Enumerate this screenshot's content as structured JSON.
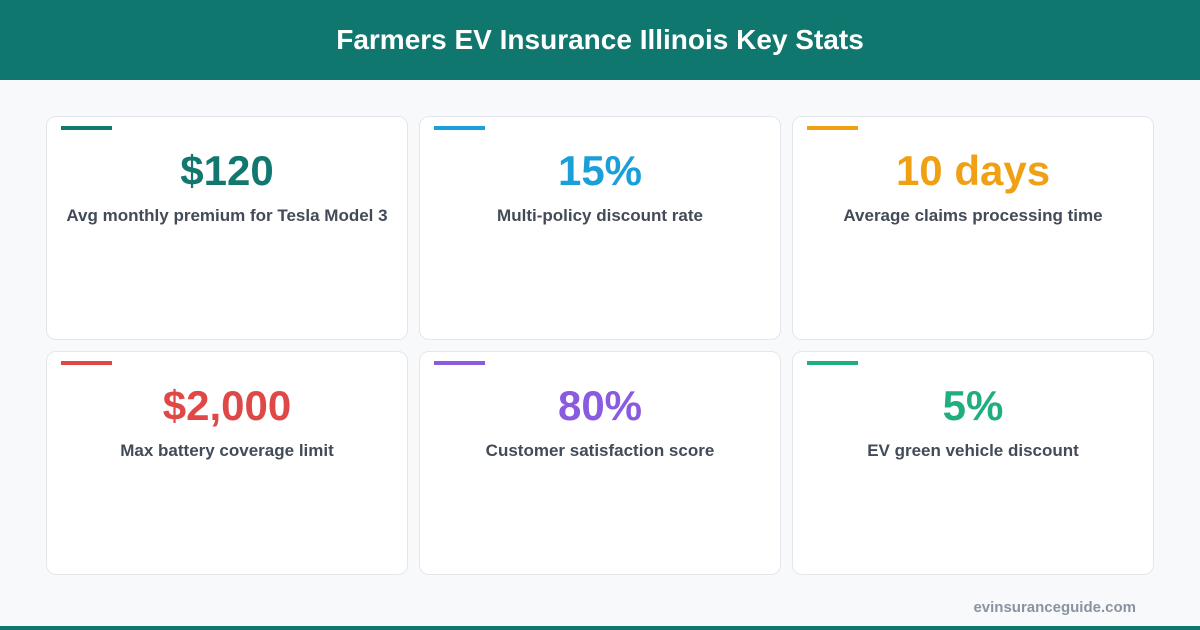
{
  "header": {
    "title": "Farmers EV Insurance Illinois Key Stats"
  },
  "cards": [
    {
      "value": "$120",
      "label": "Avg monthly premium for Tesla Model 3",
      "color": "#12776e"
    },
    {
      "value": "15%",
      "label": "Multi-policy discount rate",
      "color": "#1a9fd8"
    },
    {
      "value": "10 days",
      "label": "Average claims processing time",
      "color": "#f0a013"
    },
    {
      "value": "$2,000",
      "label": "Max battery coverage limit",
      "color": "#e04848"
    },
    {
      "value": "80%",
      "label": "Customer satisfaction score",
      "color": "#8a5ae0"
    },
    {
      "value": "5%",
      "label": "EV green vehicle discount",
      "color": "#1fae80"
    }
  ],
  "footer": {
    "source": "evinsuranceguide.com"
  }
}
